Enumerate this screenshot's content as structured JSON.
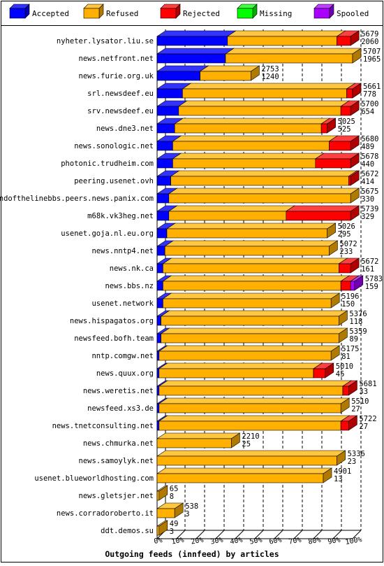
{
  "chart_data": {
    "type": "bar",
    "orientation": "horizontal",
    "stacked": true,
    "title": "Outgoing feeds (innfeed) by articles",
    "xlim": [
      0,
      100
    ],
    "x_unit": "%",
    "x_ticks": [
      "0%",
      "10%",
      "20%",
      "30%",
      "40%",
      "50%",
      "60%",
      "70%",
      "80%",
      "90%",
      "100%"
    ],
    "grid": true,
    "legend_position": "top",
    "series": [
      {
        "name": "Accepted",
        "color": "#0000ff",
        "side": "#0000b0",
        "top": "#3333ff"
      },
      {
        "name": "Refused",
        "color": "#ffb000",
        "side": "#b07a00",
        "top": "#ffc640"
      },
      {
        "name": "Rejected",
        "color": "#ff0000",
        "side": "#b00000",
        "top": "#ff4040"
      },
      {
        "name": "Missing",
        "color": "#00ff00",
        "side": "#00b000",
        "top": "#40ff40"
      },
      {
        "name": "Spooled",
        "color": "#aa00ff",
        "side": "#7000b0",
        "top": "#c040ff"
      }
    ],
    "rows": [
      {
        "label": "nyheter.lysator.liu.se",
        "total": "5679",
        "accepted": "2060",
        "pct": [
          36,
          56,
          7,
          0,
          0
        ]
      },
      {
        "label": "news.netfront.net",
        "total": "5707",
        "accepted": "1965",
        "pct": [
          35,
          65,
          0,
          0,
          0
        ]
      },
      {
        "label": "news.furie.org.uk",
        "total": "2753",
        "accepted": "1240",
        "pct": [
          22,
          26,
          0,
          0,
          0
        ]
      },
      {
        "label": "srl.newsdeef.eu",
        "total": "5661",
        "accepted": "778",
        "pct": [
          13,
          84,
          3,
          0,
          0
        ]
      },
      {
        "label": "srv.newsdeef.eu",
        "total": "5700",
        "accepted": "654",
        "pct": [
          11,
          83,
          5,
          0,
          0
        ]
      },
      {
        "label": "news.dne3.net",
        "total": "5025",
        "accepted": "525",
        "pct": [
          9,
          75,
          3,
          0,
          0
        ]
      },
      {
        "label": "news.sonologic.net",
        "total": "5680",
        "accepted": "489",
        "pct": [
          8,
          80,
          11,
          0,
          0
        ]
      },
      {
        "label": "photonic.trudheim.com",
        "total": "5678",
        "accepted": "440",
        "pct": [
          8,
          73,
          18,
          0,
          0
        ]
      },
      {
        "label": "peering.usenet.ovh",
        "total": "5672",
        "accepted": "414",
        "pct": [
          7,
          91,
          1,
          0,
          0
        ]
      },
      {
        "label": "endofthelinebbs.peers.news.panix.com",
        "total": "5675",
        "accepted": "330",
        "pct": [
          6,
          93,
          0,
          0,
          0
        ]
      },
      {
        "label": "m68k.vk3heg.net",
        "total": "5739",
        "accepted": "329",
        "pct": [
          6,
          60,
          33,
          0,
          0
        ]
      },
      {
        "label": "usenet.goja.nl.eu.org",
        "total": "5026",
        "accepted": "295",
        "pct": [
          5,
          82,
          0,
          0,
          0
        ]
      },
      {
        "label": "news.nntp4.net",
        "total": "5072",
        "accepted": "233",
        "pct": [
          4,
          84,
          0,
          0,
          0
        ]
      },
      {
        "label": "news.nk.ca",
        "total": "5672",
        "accepted": "161",
        "pct": [
          3,
          90,
          6,
          0,
          0
        ]
      },
      {
        "label": "news.bbs.nz",
        "total": "5783",
        "accepted": "159",
        "pct": [
          3,
          91,
          5,
          0,
          2
        ]
      },
      {
        "label": "usenet.network",
        "total": "5196",
        "accepted": "150",
        "pct": [
          3,
          86,
          0,
          0,
          0
        ]
      },
      {
        "label": "news.hispagatos.org",
        "total": "5376",
        "accepted": "118",
        "pct": [
          2,
          91,
          0,
          0,
          0
        ]
      },
      {
        "label": "newsfeed.bofh.team",
        "total": "5359",
        "accepted": "89",
        "pct": [
          2,
          91,
          0,
          0,
          0
        ]
      },
      {
        "label": "nntp.comgw.net",
        "total": "5175",
        "accepted": "81",
        "pct": [
          1,
          88,
          0,
          0,
          0
        ]
      },
      {
        "label": "news.quux.org",
        "total": "5010",
        "accepted": "45",
        "pct": [
          1,
          79,
          6,
          0,
          0
        ]
      },
      {
        "label": "news.weretis.net",
        "total": "5681",
        "accepted": "33",
        "pct": [
          1,
          94,
          3,
          0,
          0
        ]
      },
      {
        "label": "newsfeed.xs3.de",
        "total": "5510",
        "accepted": "27",
        "pct": [
          1,
          93,
          0,
          0,
          0
        ]
      },
      {
        "label": "news.tnetconsulting.net",
        "total": "5722",
        "accepted": "27",
        "pct": [
          1,
          93,
          4,
          0,
          0
        ]
      },
      {
        "label": "news.chmurka.net",
        "total": "2210",
        "accepted": "25",
        "pct": [
          0,
          38,
          0,
          0,
          0
        ]
      },
      {
        "label": "news.samoylyk.net",
        "total": "5336",
        "accepted": "23",
        "pct": [
          0,
          92,
          0,
          0,
          0
        ]
      },
      {
        "label": "usenet.blueworldhosting.com",
        "total": "4901",
        "accepted": "13",
        "pct": [
          0,
          85,
          0,
          0,
          0
        ]
      },
      {
        "label": "news.gletsjer.net",
        "total": "65",
        "accepted": "8",
        "pct": [
          0,
          1,
          0,
          0,
          0
        ]
      },
      {
        "label": "news.corradoroberto.it",
        "total": "538",
        "accepted": "3",
        "pct": [
          0,
          9,
          0,
          0,
          0
        ]
      },
      {
        "label": "ddt.demos.su",
        "total": "49",
        "accepted": "3",
        "pct": [
          0,
          1,
          0,
          0,
          0
        ]
      }
    ]
  }
}
